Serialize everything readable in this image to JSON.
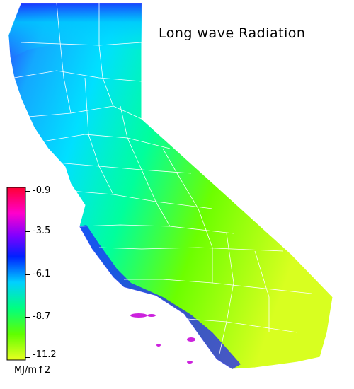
{
  "title": "Long wave Radiation",
  "legend": {
    "ticks": [
      "-0.9",
      "-3.5",
      "-6.1",
      "-8.7",
      "-11.2"
    ],
    "units": "MJ/m↑2",
    "colors": [
      "#ff0000",
      "#ff00ff",
      "#7700ff",
      "#0000ff",
      "#00ddff",
      "#00ff88",
      "#44ff00",
      "#ffff00"
    ]
  },
  "map": {
    "region": "California",
    "state_fill_gradient": [
      "#1a1aff",
      "#00ccff",
      "#00ff99",
      "#88ff00",
      "#ddff00"
    ],
    "ocean_color": "#ffffff",
    "boundary_color": "#ffffff"
  }
}
